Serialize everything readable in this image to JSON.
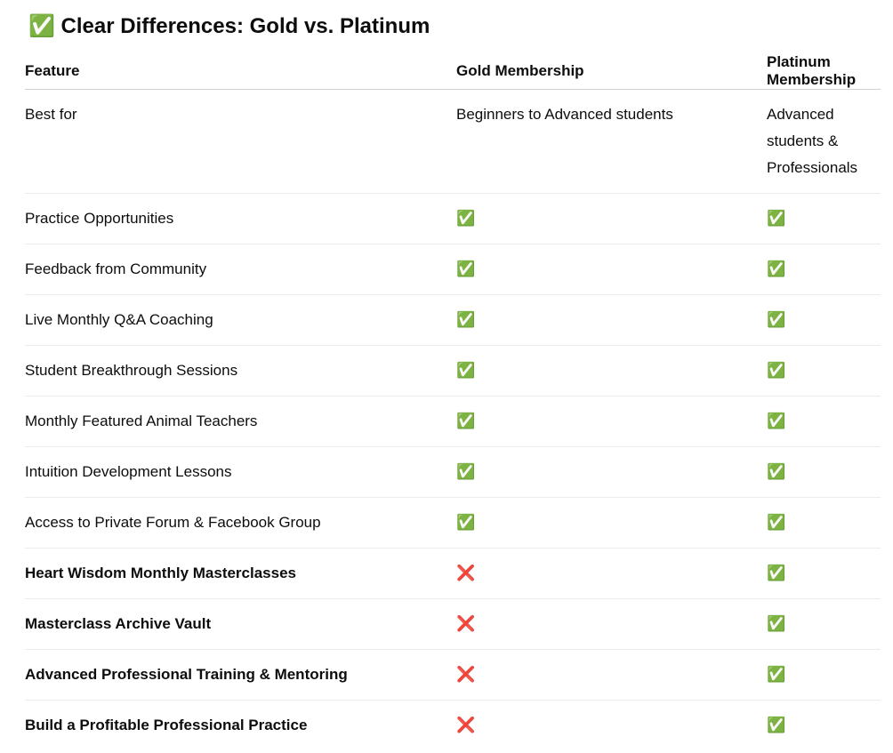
{
  "header": {
    "title": "✅ Clear Differences: Gold vs. Platinum"
  },
  "table": {
    "columns": [
      "Feature",
      "Gold Membership",
      "Platinum Membership"
    ],
    "rows": [
      {
        "cells": [
          "Best for",
          "Beginners to Advanced students",
          "Advanced students & Professionals"
        ]
      },
      {
        "cells": [
          "Practice Opportunities",
          "✅",
          "✅"
        ]
      },
      {
        "cells": [
          "Feedback from Community",
          "✅",
          "✅"
        ]
      },
      {
        "cells": [
          "Live Monthly Q&A Coaching",
          "✅",
          "✅"
        ]
      },
      {
        "cells": [
          "Student Breakthrough Sessions",
          "✅",
          "✅"
        ]
      },
      {
        "cells": [
          "Monthly Featured Animal Teachers",
          "✅",
          "✅"
        ]
      },
      {
        "cells": [
          "Intuition Development Lessons",
          "✅",
          "✅"
        ]
      },
      {
        "cells": [
          "Access to Private Forum & Facebook Group",
          "✅",
          "✅"
        ]
      },
      {
        "cells": [
          "Heart Wisdom Monthly Masterclasses",
          "❌",
          "✅"
        ],
        "bold": true
      },
      {
        "cells": [
          "Masterclass Archive Vault",
          "❌",
          "✅"
        ],
        "bold": true
      },
      {
        "cells": [
          "Advanced Professional Training & Mentoring",
          "❌",
          "✅"
        ],
        "bold": true
      },
      {
        "cells": [
          "Build a Profitable Professional Practice",
          "❌",
          "✅"
        ],
        "bold": true
      }
    ]
  }
}
